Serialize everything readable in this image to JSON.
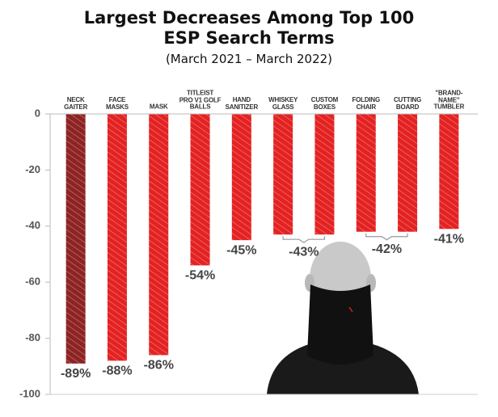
{
  "chart_data": {
    "type": "bar",
    "title": "Largest Decreases Among Top 100\nESP Search Terms",
    "subtitle": "(March 2021 – March 2022)",
    "categories": [
      "NECK\nGAITER",
      "FACE\nMASKS",
      "MASK",
      "TITLEIST\nPRO V1 GOLF\nBALLS",
      "HAND\nSANITIZER",
      "WHISKEY\nGLASS",
      "CUSTOM\nBOXES",
      "FOLDING\nCHAIR",
      "CUTTING\nBOARD",
      "\"BRAND-\nNAME\"\nTUMBLER"
    ],
    "values": [
      -89,
      -88,
      -86,
      -54,
      -45,
      -43,
      -43,
      -42,
      -42,
      -41
    ],
    "value_labels": [
      "-89%",
      "-88%",
      "-86%",
      "-54%",
      "-45%",
      "-43%",
      null,
      "-42%",
      null,
      "-41%"
    ],
    "colors": [
      "#8e2323",
      "#e42222",
      "#e42222",
      "#e42222",
      "#e42222",
      "#e42222",
      "#e42222",
      "#e42222",
      "#e42222",
      "#e42222"
    ],
    "ylim": [
      -100,
      0
    ],
    "yticks": [
      0,
      -20,
      -40,
      -60,
      -80,
      -100
    ],
    "grid": false
  }
}
